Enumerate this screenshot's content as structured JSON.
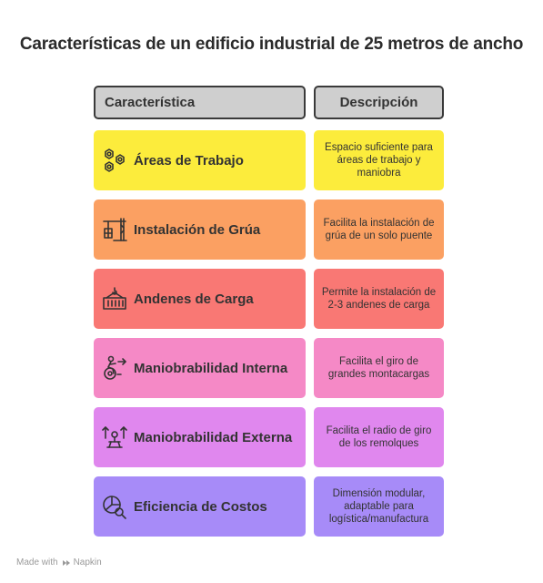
{
  "title": "Características de un edificio industrial de 25 metros de ancho",
  "header": {
    "left": "Característica",
    "right": "Descripción"
  },
  "rows": [
    {
      "label": "Áreas de Trabajo",
      "description": "Espacio suficiente para áreas de trabajo y maniobra",
      "icon": "gears-icon",
      "color": "#fcec3c"
    },
    {
      "label": "Instalación de Grúa",
      "description": "Facilita la instalación de grúa de un solo puente",
      "icon": "crane-icon",
      "color": "#fba062"
    },
    {
      "label": "Andenes de Carga",
      "description": "Permite la instalación de 2-3 andenes de carga",
      "icon": "container-icon",
      "color": "#f97874"
    },
    {
      "label": "Maniobrabilidad Interna",
      "description": "Facilita el giro de grandes montacargas",
      "icon": "person-wheel-icon",
      "color": "#f589c6"
    },
    {
      "label": "Maniobrabilidad Externa",
      "description": "Facilita el radio de giro de los remolques",
      "icon": "maneuver-arrows-icon",
      "color": "#e087ee"
    },
    {
      "label": "Eficiencia de Costos",
      "description": "Dimensión modular, adaptable para logística/manufactura",
      "icon": "pie-magnifier-icon",
      "color": "#a78bf8"
    }
  ],
  "footer": {
    "made_with": "Made with",
    "brand": "Napkin"
  }
}
